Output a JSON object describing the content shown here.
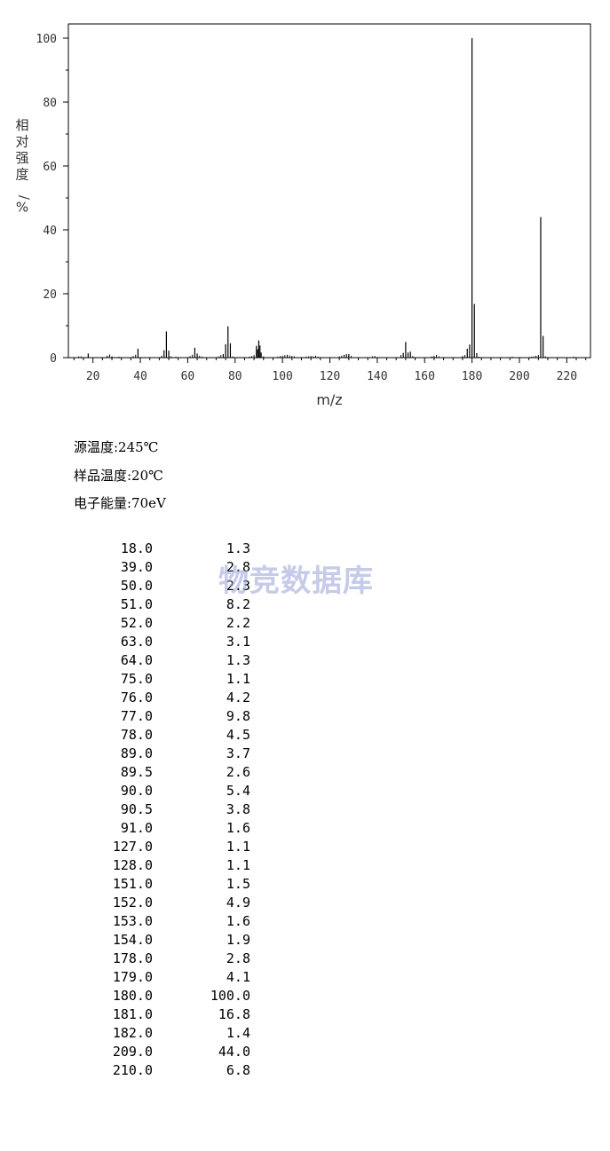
{
  "chart_data": {
    "type": "bar",
    "xlabel": "m/z",
    "ylabel": "相对强度/%",
    "xlim": [
      10,
      230
    ],
    "ylim": [
      0,
      100
    ],
    "x_ticks": [
      20,
      40,
      60,
      80,
      100,
      120,
      140,
      160,
      180,
      200,
      220
    ],
    "y_ticks": [
      0,
      20,
      40,
      60,
      80,
      100
    ],
    "grid": false,
    "peaks": [
      {
        "mz": "18.0",
        "intensity": "1.3"
      },
      {
        "mz": "39.0",
        "intensity": "2.8"
      },
      {
        "mz": "50.0",
        "intensity": "2.3"
      },
      {
        "mz": "51.0",
        "intensity": "8.2"
      },
      {
        "mz": "52.0",
        "intensity": "2.2"
      },
      {
        "mz": "63.0",
        "intensity": "3.1"
      },
      {
        "mz": "64.0",
        "intensity": "1.3"
      },
      {
        "mz": "75.0",
        "intensity": "1.1"
      },
      {
        "mz": "76.0",
        "intensity": "4.2"
      },
      {
        "mz": "77.0",
        "intensity": "9.8"
      },
      {
        "mz": "78.0",
        "intensity": "4.5"
      },
      {
        "mz": "89.0",
        "intensity": "3.7"
      },
      {
        "mz": "89.5",
        "intensity": "2.6"
      },
      {
        "mz": "90.0",
        "intensity": "5.4"
      },
      {
        "mz": "90.5",
        "intensity": "3.8"
      },
      {
        "mz": "91.0",
        "intensity": "1.6"
      },
      {
        "mz": "127.0",
        "intensity": "1.1"
      },
      {
        "mz": "128.0",
        "intensity": "1.1"
      },
      {
        "mz": "151.0",
        "intensity": "1.5"
      },
      {
        "mz": "152.0",
        "intensity": "4.9"
      },
      {
        "mz": "153.0",
        "intensity": "1.6"
      },
      {
        "mz": "154.0",
        "intensity": "1.9"
      },
      {
        "mz": "178.0",
        "intensity": "2.8"
      },
      {
        "mz": "179.0",
        "intensity": "4.1"
      },
      {
        "mz": "180.0",
        "intensity": "100.0"
      },
      {
        "mz": "181.0",
        "intensity": "16.8"
      },
      {
        "mz": "182.0",
        "intensity": "1.4"
      },
      {
        "mz": "209.0",
        "intensity": "44.0"
      },
      {
        "mz": "210.0",
        "intensity": "6.8"
      }
    ],
    "minor_peaks": [
      [
        14,
        0.4
      ],
      [
        15,
        0.4
      ],
      [
        26,
        0.6
      ],
      [
        27,
        1.0
      ],
      [
        28,
        0.4
      ],
      [
        31,
        0.3
      ],
      [
        37,
        0.5
      ],
      [
        38,
        0.9
      ],
      [
        49,
        0.6
      ],
      [
        53,
        0.4
      ],
      [
        55,
        0.3
      ],
      [
        61,
        0.5
      ],
      [
        62,
        0.9
      ],
      [
        65,
        0.6
      ],
      [
        66,
        0.3
      ],
      [
        73,
        0.4
      ],
      [
        74,
        0.8
      ],
      [
        79,
        0.4
      ],
      [
        86,
        0.3
      ],
      [
        87,
        0.5
      ],
      [
        88,
        0.8
      ],
      [
        92,
        0.4
      ],
      [
        98,
        0.3
      ],
      [
        99,
        0.5
      ],
      [
        100,
        0.6
      ],
      [
        101,
        0.8
      ],
      [
        102,
        0.9
      ],
      [
        103,
        0.7
      ],
      [
        104,
        0.5
      ],
      [
        105,
        0.4
      ],
      [
        110,
        0.3
      ],
      [
        111,
        0.4
      ],
      [
        112,
        0.5
      ],
      [
        113,
        0.4
      ],
      [
        114,
        0.6
      ],
      [
        115,
        0.3
      ],
      [
        124,
        0.4
      ],
      [
        125,
        0.6
      ],
      [
        126,
        0.9
      ],
      [
        129,
        0.5
      ],
      [
        138,
        0.4
      ],
      [
        139,
        0.5
      ],
      [
        150,
        0.8
      ],
      [
        155,
        0.5
      ],
      [
        163,
        0.4
      ],
      [
        164,
        0.6
      ],
      [
        165,
        0.8
      ],
      [
        166,
        0.4
      ],
      [
        176,
        0.5
      ],
      [
        177,
        0.8
      ],
      [
        183,
        0.3
      ],
      [
        197,
        0.3
      ],
      [
        205,
        0.3
      ],
      [
        206,
        0.4
      ],
      [
        207,
        0.6
      ],
      [
        208,
        0.8
      ],
      [
        211,
        0.4
      ],
      [
        223,
        0.3
      ]
    ]
  },
  "conditions": [
    "源温度:245℃",
    "样品温度:20℃",
    "电子能量:70eV"
  ],
  "watermark": "物竞数据库"
}
